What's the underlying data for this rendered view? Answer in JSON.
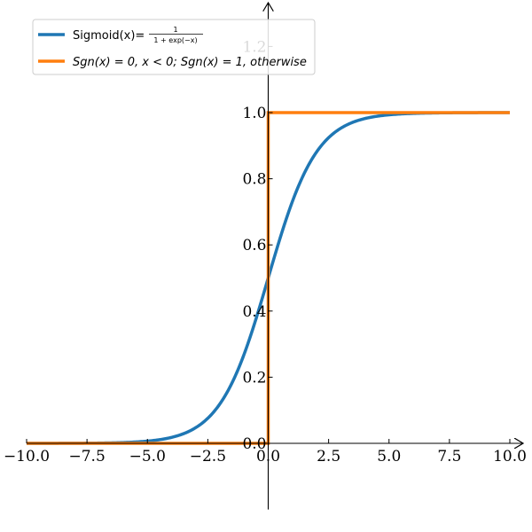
{
  "chart_data": {
    "type": "line",
    "xlim": [
      -10,
      10
    ],
    "ylim": [
      -0.2,
      1.3
    ],
    "x_ticks": [
      -10,
      -7.5,
      -5,
      -2.5,
      0,
      2.5,
      5,
      7.5,
      10
    ],
    "x_tick_labels": [
      "−10.0",
      "−7.5",
      "−5.0",
      "−2.5",
      "0.0",
      "2.5",
      "5.0",
      "7.5",
      "10.0"
    ],
    "y_ticks": [
      0,
      0.2,
      0.4,
      0.6,
      0.8,
      1.0,
      1.2
    ],
    "y_tick_labels": [
      "0.0",
      "0.2",
      "0.4",
      "0.6",
      "0.8",
      "1.0",
      "1.2"
    ],
    "grid": false,
    "spines": "center",
    "legend_position": "top-left",
    "series": [
      {
        "name": "Sigmoid(x)=",
        "name_fraction_numerator": "1",
        "name_fraction_denominator": "1 + exp(−x)",
        "color": "#1f77b4",
        "x": [
          -10,
          -9,
          -8,
          -7,
          -6,
          -5,
          -4,
          -3,
          -2.5,
          -2,
          -1.5,
          -1,
          -0.5,
          0,
          0.5,
          1,
          1.5,
          2,
          2.5,
          3,
          4,
          5,
          6,
          7,
          8,
          9,
          10
        ],
        "y": [
          0.0,
          0.0001,
          0.0003,
          0.0009,
          0.0025,
          0.0067,
          0.018,
          0.0474,
          0.0759,
          0.1192,
          0.1824,
          0.2689,
          0.3775,
          0.5,
          0.6225,
          0.7311,
          0.8176,
          0.8808,
          0.9241,
          0.9526,
          0.982,
          0.9933,
          0.9975,
          0.9991,
          0.9997,
          0.9999,
          1.0
        ]
      },
      {
        "name": "Sgn(x) = 0, x < 0; Sgn(x) = 1, otherwise",
        "color": "#ff7f0e",
        "x": [
          -10,
          0,
          0,
          10
        ],
        "y": [
          0,
          0,
          1,
          1
        ]
      }
    ]
  }
}
